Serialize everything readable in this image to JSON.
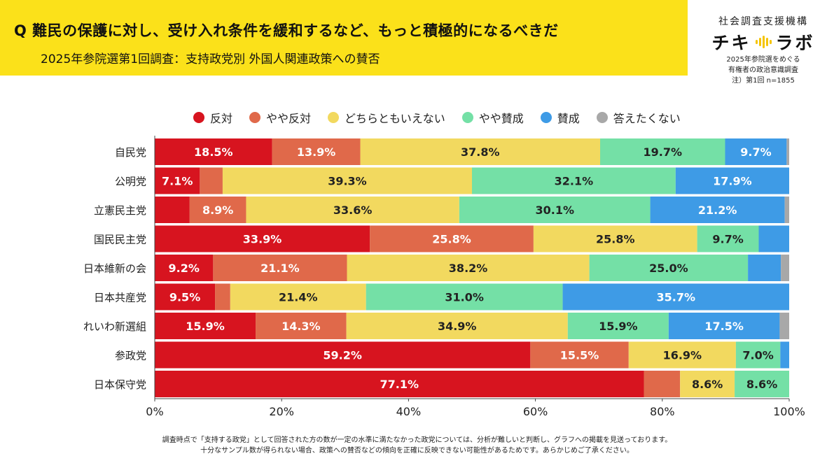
{
  "header": {
    "title": "Q 難民の保護に対し、受け入れ条件を緩和するなど、もっと積極的になるべきだ",
    "subtitle": "2025年参院選第1回調査：支持政党別 外国人関連政策への賛否"
  },
  "org": {
    "name": "社会調査支援機構",
    "logo_left": "チキ",
    "logo_right": "ラボ",
    "note_lines": [
      "2025年参院選をめぐる",
      "有権者の政治意識調査",
      "注）第1回 n=1855"
    ]
  },
  "footnote": {
    "lines": [
      "調査時点で「支持する政党」として回答された方の数が一定の水準に満たなかった政党については、分析が難しいと判断し、グラフへの掲載を見送っております。",
      "十分なサンプル数が得られない場合、政策への賛否などの傾向を正確に反映できない可能性があるためです。あらかじめご了承ください。"
    ]
  },
  "chart_data": {
    "type": "bar",
    "orientation": "horizontal",
    "stacked": true,
    "title": "",
    "xlabel": "",
    "ylabel": "",
    "xlim": [
      0,
      100
    ],
    "x_ticks": [
      "0%",
      "20%",
      "40%",
      "60%",
      "80%",
      "100%"
    ],
    "legend_position": "top",
    "categories": [
      "自民党",
      "公明党",
      "立憲民主党",
      "国民民主党",
      "日本維新の会",
      "日本共産党",
      "れいわ新選組",
      "参政党",
      "日本保守党"
    ],
    "series": [
      {
        "name": "反対",
        "color": "#d7141f",
        "values": [
          18.5,
          7.1,
          5.5,
          33.9,
          9.2,
          9.5,
          15.9,
          59.2,
          77.1
        ],
        "labels": [
          "18.5%",
          "7.1%",
          "",
          "33.9%",
          "9.2%",
          "9.5%",
          "15.9%",
          "59.2%",
          "77.1%"
        ]
      },
      {
        "name": "やや反対",
        "color": "#e0694a",
        "values": [
          13.9,
          3.6,
          8.9,
          25.8,
          21.1,
          2.4,
          14.3,
          15.5,
          5.7
        ],
        "labels": [
          "13.9%",
          "",
          "8.9%",
          "25.8%",
          "21.1%",
          "",
          "14.3%",
          "15.5%",
          ""
        ]
      },
      {
        "name": "どちらともいえない",
        "color": "#f2d95f",
        "values": [
          37.8,
          39.3,
          33.6,
          25.8,
          38.2,
          21.4,
          34.9,
          16.9,
          8.6
        ],
        "labels": [
          "37.8%",
          "39.3%",
          "33.6%",
          "25.8%",
          "38.2%",
          "21.4%",
          "34.9%",
          "16.9%",
          "8.6%"
        ]
      },
      {
        "name": "やや賛成",
        "color": "#74e0a6",
        "values": [
          19.7,
          32.1,
          30.1,
          9.7,
          25.0,
          31.0,
          15.9,
          7.0,
          8.6
        ],
        "labels": [
          "19.7%",
          "32.1%",
          "30.1%",
          "9.7%",
          "25.0%",
          "31.0%",
          "15.9%",
          "7.0%",
          "8.6%"
        ]
      },
      {
        "name": "賛成",
        "color": "#3e9be6",
        "values": [
          9.7,
          17.9,
          21.2,
          4.8,
          5.2,
          35.7,
          17.5,
          1.4,
          0.0
        ],
        "labels": [
          "9.7%",
          "17.9%",
          "21.2%",
          "",
          "",
          "35.7%",
          "17.5%",
          "",
          ""
        ]
      },
      {
        "name": "答えたくない",
        "color": "#a8a8a8",
        "values": [
          0.4,
          0.0,
          0.7,
          0.0,
          1.3,
          0.0,
          1.5,
          0.0,
          0.0
        ],
        "labels": [
          "",
          "",
          "",
          "",
          "",
          "",
          "",
          "",
          ""
        ]
      }
    ]
  }
}
